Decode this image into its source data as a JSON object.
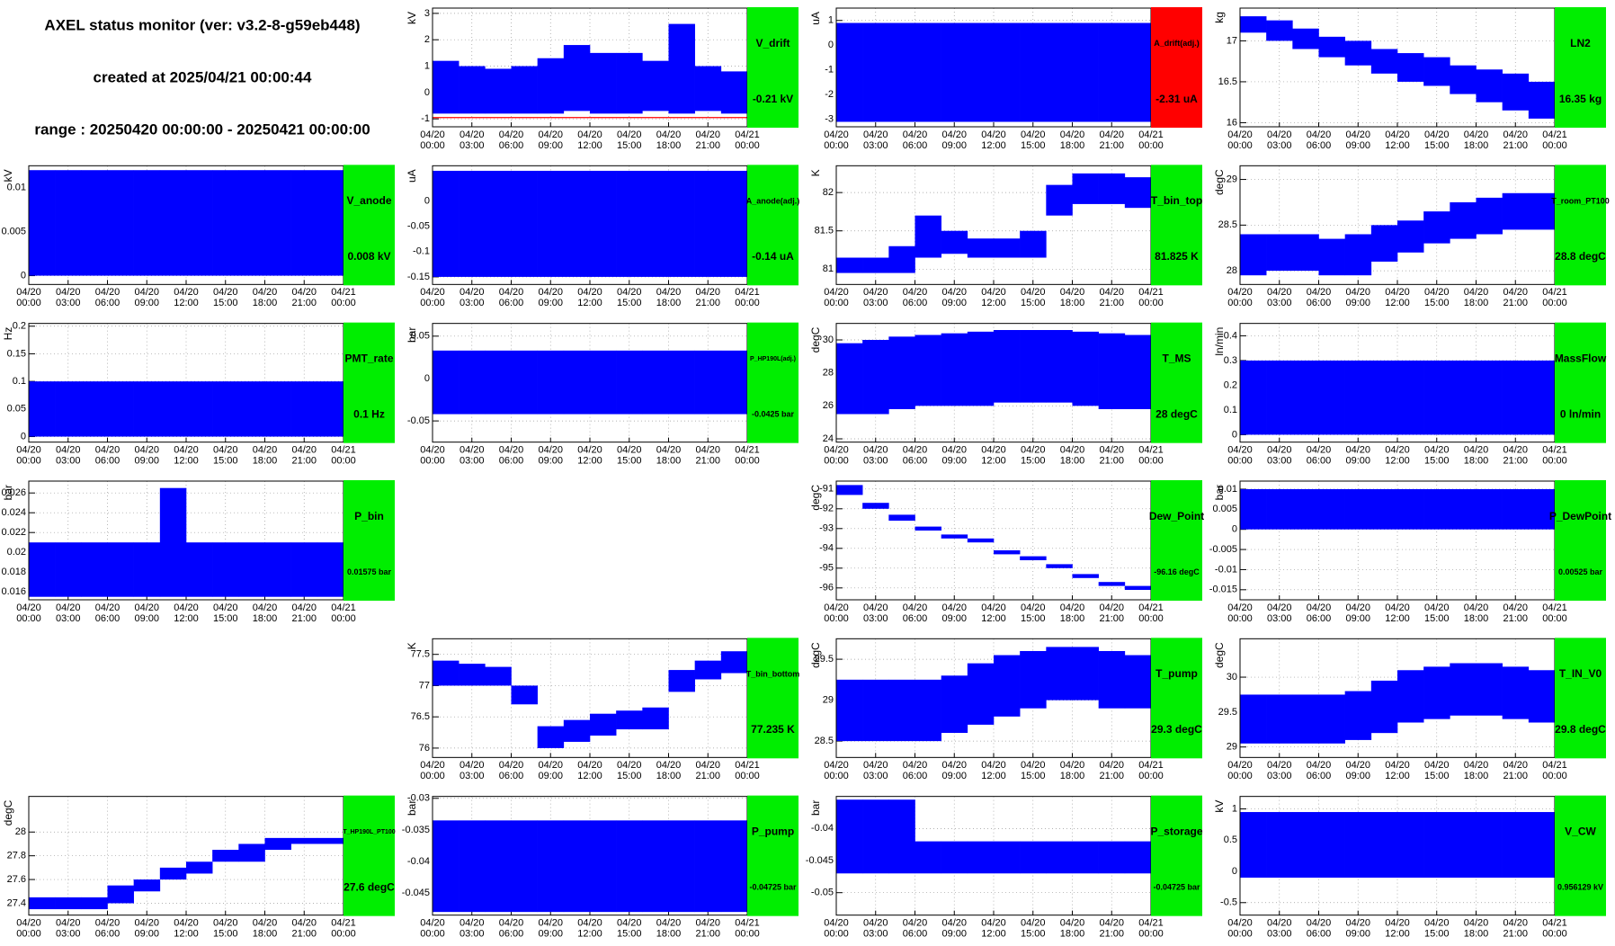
{
  "header": {
    "title": "AXEL status monitor (ver: v3.2-8-g59eb448)",
    "created": "created at 2025/04/21 00:00:44",
    "range": "range : 20250420 00:00:00 - 20250421 00:00:00"
  },
  "time_axis": {
    "dates": [
      "04/20",
      "04/20",
      "04/20",
      "04/20",
      "04/20",
      "04/20",
      "04/20",
      "04/20",
      "04/21"
    ],
    "times": [
      "00:00",
      "03:00",
      "06:00",
      "09:00",
      "12:00",
      "15:00",
      "18:00",
      "21:00",
      "00:00"
    ]
  },
  "chart_data": [
    {
      "type": "band",
      "name": "V_drift",
      "value_label": "-0.21 kV",
      "y_label": "kV",
      "status_color": "#00ee00",
      "color": "#0000ff",
      "grid": true,
      "ylim": [
        -1.3,
        3.2
      ],
      "yticks": [
        -1,
        0,
        1,
        2,
        3
      ],
      "threshold": -0.95,
      "threshold_color": "#ff0000",
      "low": [
        -0.8,
        -0.8,
        -0.8,
        -0.8,
        -0.8,
        -0.7,
        -0.8,
        -0.8,
        -0.7,
        -0.8,
        -0.7,
        -0.8
      ],
      "high": [
        1.2,
        1,
        0.9,
        1,
        1.3,
        1.8,
        1.5,
        1.5,
        1.2,
        2.6,
        1,
        0.8
      ]
    },
    {
      "type": "band",
      "name": "A_drift(adj.)",
      "value_label": "-2.31 uA",
      "y_label": "uA",
      "status_color": "#ff0000",
      "color": "#0000ff",
      "grid": true,
      "ylim": [
        -3.3,
        1.5
      ],
      "yticks": [
        -3,
        -2,
        -1,
        0,
        1
      ],
      "low": [
        -3.1,
        -3.1,
        -3.1,
        -3.1,
        -3.1,
        -3.1,
        -3.1,
        -3.1,
        -3.1,
        -3.1,
        -3.1,
        -3.1
      ],
      "high": [
        0.9,
        0.9,
        0.9,
        0.9,
        0.9,
        0.9,
        0.9,
        0.9,
        0.9,
        0.9,
        0.9,
        0.9
      ]
    },
    {
      "type": "band",
      "name": "LN2",
      "value_label": "16.35 kg",
      "y_label": "kg",
      "status_color": "#00ee00",
      "color": "#0000ff",
      "grid": true,
      "ylim": [
        15.95,
        17.4
      ],
      "yticks": [
        16,
        16.5,
        17
      ],
      "low": [
        17.1,
        17.0,
        16.9,
        16.8,
        16.7,
        16.6,
        16.5,
        16.45,
        16.35,
        16.25,
        16.15,
        16.05
      ],
      "high": [
        17.3,
        17.25,
        17.15,
        17.05,
        17.0,
        16.9,
        16.85,
        16.8,
        16.7,
        16.65,
        16.6,
        16.5
      ]
    },
    {
      "type": "band",
      "name": "V_anode",
      "value_label": "0.008 kV",
      "y_label": "kV",
      "status_color": "#00ee00",
      "color": "#0000ff",
      "grid": true,
      "ylim": [
        -0.001,
        0.0125
      ],
      "yticks": [
        0,
        0.005,
        0.01
      ],
      "low": [
        0,
        0,
        0,
        0,
        0,
        0,
        0,
        0,
        0,
        0,
        0,
        0
      ],
      "high": [
        0.012,
        0.012,
        0.012,
        0.012,
        0.012,
        0.012,
        0.012,
        0.012,
        0.012,
        0.012,
        0.012,
        0.012
      ]
    },
    {
      "type": "band",
      "name": "A_anode(adj.)",
      "value_label": "-0.14 uA",
      "y_label": "uA",
      "status_color": "#00ee00",
      "color": "#0000ff",
      "grid": true,
      "ylim": [
        -0.165,
        0.07
      ],
      "yticks": [
        -0.15,
        -0.1,
        -0.05,
        0
      ],
      "low": [
        -0.15,
        -0.15,
        -0.15,
        -0.15,
        -0.15,
        -0.15,
        -0.15,
        -0.15,
        -0.15,
        -0.15,
        -0.15,
        -0.15
      ],
      "high": [
        0.06,
        0.06,
        0.06,
        0.06,
        0.06,
        0.06,
        0.06,
        0.06,
        0.06,
        0.06,
        0.06,
        0.06
      ]
    },
    {
      "type": "band",
      "name": "T_bin_top",
      "value_label": "81.825 K",
      "y_label": "K",
      "status_color": "#00ee00",
      "color": "#0000ff",
      "grid": true,
      "ylim": [
        80.8,
        82.35
      ],
      "yticks": [
        81,
        81.5,
        82
      ],
      "low": [
        80.95,
        80.95,
        80.95,
        81.15,
        81.2,
        81.15,
        81.15,
        81.15,
        81.7,
        81.85,
        81.85,
        81.8
      ],
      "high": [
        81.15,
        81.15,
        81.3,
        81.7,
        81.5,
        81.4,
        81.4,
        81.5,
        82.1,
        82.25,
        82.25,
        82.2
      ]
    },
    {
      "type": "band",
      "name": "T_room_PT100",
      "value_label": "28.8 degC",
      "y_label": "degC",
      "status_color": "#00ee00",
      "color": "#0000ff",
      "grid": true,
      "ylim": [
        27.85,
        29.15
      ],
      "yticks": [
        28,
        28.5,
        29
      ],
      "low": [
        27.95,
        28.0,
        28.0,
        27.95,
        27.95,
        28.1,
        28.2,
        28.3,
        28.35,
        28.4,
        28.45,
        28.45
      ],
      "high": [
        28.4,
        28.4,
        28.4,
        28.35,
        28.4,
        28.5,
        28.55,
        28.65,
        28.75,
        28.8,
        28.85,
        28.85
      ]
    },
    {
      "type": "band",
      "name": "PMT_rate",
      "value_label": "0.1 Hz",
      "y_label": "Hz",
      "status_color": "#00ee00",
      "color": "#0000ff",
      "grid": true,
      "ylim": [
        -0.01,
        0.205
      ],
      "yticks": [
        0,
        0.05,
        0.1,
        0.15,
        0.2
      ],
      "low": [
        0,
        0,
        0,
        0,
        0,
        0,
        0,
        0,
        0,
        0,
        0,
        0
      ],
      "high": [
        0.1,
        0.1,
        0.1,
        0.1,
        0.1,
        0.1,
        0.1,
        0.1,
        0.1,
        0.1,
        0.1,
        0.1
      ]
    },
    {
      "type": "band",
      "name": "P_HP190L(adj.)",
      "value_label": "-0.0425 bar",
      "y_label": "bar",
      "status_color": "#00ee00",
      "color": "#0000ff",
      "grid": true,
      "ylim": [
        -0.075,
        0.065
      ],
      "yticks": [
        -0.05,
        0,
        0.05
      ],
      "low": [
        -0.042,
        -0.042,
        -0.042,
        -0.042,
        -0.042,
        -0.042,
        -0.042,
        -0.042,
        -0.042,
        -0.042,
        -0.042,
        -0.042
      ],
      "high": [
        0.033,
        0.033,
        0.033,
        0.033,
        0.033,
        0.033,
        0.033,
        0.033,
        0.033,
        0.033,
        0.033,
        0.033
      ]
    },
    {
      "type": "band",
      "name": "T_MS",
      "value_label": "28 degC",
      "y_label": "degC",
      "status_color": "#00ee00",
      "color": "#0000ff",
      "grid": true,
      "ylim": [
        23.8,
        31
      ],
      "yticks": [
        24,
        26,
        28,
        30
      ],
      "low": [
        25.5,
        25.5,
        25.8,
        26,
        26,
        26,
        26.2,
        26.2,
        26.2,
        26,
        25.8,
        25.8
      ],
      "high": [
        29.8,
        30,
        30.2,
        30.3,
        30.4,
        30.5,
        30.6,
        30.6,
        30.6,
        30.5,
        30.4,
        30.3
      ]
    },
    {
      "type": "band",
      "name": "MassFlow",
      "value_label": "0 ln/min",
      "y_label": "ln/min",
      "status_color": "#00ee00",
      "color": "#0000ff",
      "grid": true,
      "ylim": [
        -0.03,
        0.45
      ],
      "yticks": [
        0,
        0.1,
        0.2,
        0.3,
        0.4
      ],
      "low": [
        0,
        0,
        0,
        0,
        0,
        0,
        0,
        0,
        0,
        0,
        0,
        0
      ],
      "high": [
        0.3,
        0.3,
        0.3,
        0.3,
        0.3,
        0.3,
        0.3,
        0.3,
        0.3,
        0.3,
        0.3,
        0.3
      ]
    },
    {
      "type": "band",
      "name": "P_bin",
      "value_label": "0.01575 bar",
      "y_label": "bar",
      "status_color": "#00ee00",
      "color": "#0000ff",
      "grid": true,
      "ylim": [
        0.0152,
        0.0272
      ],
      "yticks": [
        0.016,
        0.018,
        0.02,
        0.022,
        0.024,
        0.026
      ],
      "low": [
        0.0155,
        0.0155,
        0.0155,
        0.0155,
        0.0155,
        0.0155,
        0.0155,
        0.0155,
        0.0155,
        0.0155,
        0.0155,
        0.0155
      ],
      "high": [
        0.021,
        0.021,
        0.021,
        0.021,
        0.021,
        0.0265,
        0.021,
        0.021,
        0.021,
        0.021,
        0.021,
        0.021
      ]
    },
    {
      "type": "band",
      "name": "Dew_Point",
      "value_label": "-96.16 degC",
      "y_label": "degC",
      "status_color": "#00ee00",
      "color": "#0000ff",
      "grid": true,
      "ylim": [
        -96.6,
        -90.6
      ],
      "yticks": [
        -96,
        -95,
        -94,
        -93,
        -92,
        -91
      ],
      "low": [
        -91.3,
        -92.0,
        -92.6,
        -93.1,
        -93.5,
        -93.7,
        -94.3,
        -94.6,
        -95.0,
        -95.5,
        -95.9,
        -96.1
      ],
      "high": [
        -90.8,
        -91.7,
        -92.3,
        -92.9,
        -93.3,
        -93.5,
        -94.1,
        -94.4,
        -94.8,
        -95.3,
        -95.7,
        -95.9
      ]
    },
    {
      "type": "band",
      "name": "P_DewPoint",
      "value_label": "0.00525 bar",
      "y_label": "bar",
      "status_color": "#00ee00",
      "color": "#0000ff",
      "grid": true,
      "ylim": [
        -0.0175,
        0.012
      ],
      "yticks": [
        -0.015,
        -0.01,
        -0.005,
        0,
        0.005,
        0.01
      ],
      "low": [
        0,
        0,
        0,
        0,
        0,
        0,
        0,
        0,
        0,
        0,
        0,
        0
      ],
      "high": [
        0.01,
        0.01,
        0.01,
        0.01,
        0.01,
        0.01,
        0.01,
        0.01,
        0.01,
        0.01,
        0.01,
        0.01
      ]
    },
    {
      "type": "band",
      "name": "T_bin_bottom",
      "value_label": "77.235 K",
      "y_label": "K",
      "status_color": "#00ee00",
      "color": "#0000ff",
      "grid": true,
      "ylim": [
        75.85,
        77.75
      ],
      "yticks": [
        76,
        76.5,
        77,
        77.5
      ],
      "low": [
        77.0,
        77.0,
        77.0,
        76.7,
        76.0,
        76.1,
        76.2,
        76.3,
        76.3,
        76.9,
        77.1,
        77.2
      ],
      "high": [
        77.4,
        77.35,
        77.3,
        77.0,
        76.35,
        76.45,
        76.55,
        76.6,
        76.65,
        77.25,
        77.4,
        77.55
      ]
    },
    {
      "type": "band",
      "name": "T_pump",
      "value_label": "29.3 degC",
      "y_label": "degC",
      "status_color": "#00ee00",
      "color": "#0000ff",
      "grid": true,
      "ylim": [
        28.3,
        29.75
      ],
      "yticks": [
        28.5,
        29,
        29.5
      ],
      "low": [
        28.5,
        28.5,
        28.5,
        28.5,
        28.6,
        28.7,
        28.8,
        28.9,
        29.0,
        29.0,
        28.9,
        28.9
      ],
      "high": [
        29.25,
        29.25,
        29.25,
        29.25,
        29.3,
        29.45,
        29.55,
        29.6,
        29.65,
        29.65,
        29.6,
        29.55
      ]
    },
    {
      "type": "band",
      "name": "T_IN_V0",
      "value_label": "29.8 degC",
      "y_label": "degC",
      "status_color": "#00ee00",
      "color": "#0000ff",
      "grid": true,
      "ylim": [
        28.85,
        30.55
      ],
      "yticks": [
        29,
        29.5,
        30
      ],
      "low": [
        29.05,
        29.05,
        29.05,
        29.05,
        29.1,
        29.2,
        29.35,
        29.4,
        29.45,
        29.45,
        29.4,
        29.35
      ],
      "high": [
        29.75,
        29.75,
        29.75,
        29.75,
        29.8,
        29.95,
        30.1,
        30.15,
        30.2,
        30.2,
        30.15,
        30.1
      ]
    },
    {
      "type": "band",
      "name": "T_HP190L_PT100",
      "value_label": "27.6 degC",
      "y_label": "degC",
      "status_color": "#00ee00",
      "color": "#0000ff",
      "grid": true,
      "ylim": [
        27.3,
        28.3
      ],
      "yticks": [
        27.4,
        27.6,
        27.8,
        28
      ],
      "low": [
        27.35,
        27.35,
        27.35,
        27.4,
        27.5,
        27.6,
        27.65,
        27.75,
        27.75,
        27.85,
        27.9,
        27.9
      ],
      "high": [
        27.45,
        27.45,
        27.45,
        27.55,
        27.6,
        27.7,
        27.75,
        27.85,
        27.9,
        27.95,
        27.95,
        27.95
      ]
    },
    {
      "type": "band",
      "name": "P_pump",
      "value_label": "-0.04725 bar",
      "y_label": "bar",
      "status_color": "#00ee00",
      "color": "#0000ff",
      "grid": true,
      "ylim": [
        -0.0485,
        -0.0297
      ],
      "yticks": [
        -0.045,
        -0.04,
        -0.035,
        -0.03
      ],
      "low": [
        -0.048,
        -0.048,
        -0.048,
        -0.048,
        -0.048,
        -0.048,
        -0.048,
        -0.048,
        -0.048,
        -0.048,
        -0.048,
        -0.048
      ],
      "high": [
        -0.0335,
        -0.0335,
        -0.0335,
        -0.0335,
        -0.0335,
        -0.0335,
        -0.0335,
        -0.0335,
        -0.0335,
        -0.0335,
        -0.0335,
        -0.0335
      ]
    },
    {
      "type": "band",
      "name": "P_storage",
      "value_label": "-0.04725 bar",
      "y_label": "bar",
      "status_color": "#00ee00",
      "color": "#0000ff",
      "grid": true,
      "ylim": [
        -0.0535,
        -0.035
      ],
      "yticks": [
        -0.05,
        -0.045,
        -0.04
      ],
      "low": [
        -0.047,
        -0.047,
        -0.047,
        -0.047,
        -0.047,
        -0.047,
        -0.047,
        -0.047,
        -0.047,
        -0.047,
        -0.047,
        -0.047
      ],
      "high": [
        -0.0355,
        -0.0355,
        -0.0355,
        -0.042,
        -0.042,
        -0.042,
        -0.042,
        -0.042,
        -0.042,
        -0.042,
        -0.042,
        -0.042
      ]
    },
    {
      "type": "band",
      "name": "V_CW",
      "value_label": "0.956129 kV",
      "y_label": "kV",
      "status_color": "#00ee00",
      "color": "#0000ff",
      "grid": true,
      "ylim": [
        -0.7,
        1.2
      ],
      "yticks": [
        -0.5,
        0,
        0.5,
        1
      ],
      "low": [
        -0.1,
        -0.1,
        -0.1,
        -0.1,
        -0.1,
        -0.1,
        -0.1,
        -0.1,
        -0.1,
        -0.1,
        -0.1,
        -0.1
      ],
      "high": [
        0.95,
        0.95,
        0.95,
        0.95,
        0.95,
        0.95,
        0.95,
        0.95,
        0.95,
        0.95,
        0.95,
        0.95
      ]
    }
  ]
}
